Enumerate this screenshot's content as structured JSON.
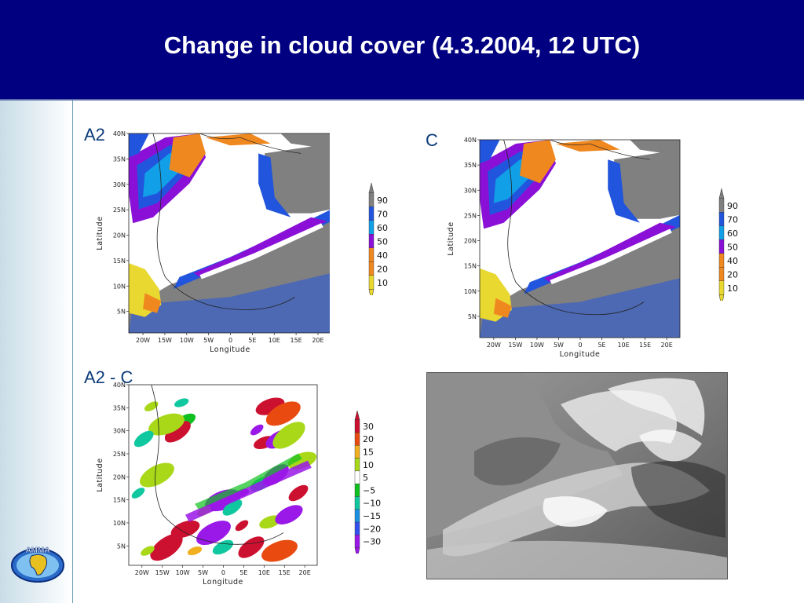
{
  "slide": {
    "title": "Change in cloud cover (4.3.2004, 12 UTC)"
  },
  "panels": [
    {
      "id": "a2",
      "label": "A2",
      "colorbar": [
        "90",
        "70",
        "60",
        "50",
        "40",
        "20",
        "10"
      ]
    },
    {
      "id": "c",
      "label": "C",
      "colorbar": [
        "90",
        "70",
        "60",
        "50",
        "40",
        "20",
        "10"
      ]
    },
    {
      "id": "diff",
      "label": "A2 - C",
      "colorbar": [
        "30",
        "20",
        "15",
        "10",
        "5",
        "−5",
        "−10",
        "−15",
        "−20",
        "−30"
      ]
    }
  ],
  "axes": {
    "xlabel": "Longitude",
    "ylabel": "Latitude",
    "xticks": [
      "20W",
      "15W",
      "10W",
      "5W",
      "0",
      "5E",
      "10E",
      "15E",
      "20E"
    ],
    "yticks": [
      "40N",
      "35N",
      "30N",
      "25N",
      "20N",
      "15N",
      "10N",
      "5N"
    ]
  },
  "colors": {
    "title_bg": "#000080",
    "cover_colors": [
      "#808080",
      "#2255dd",
      "#11a0e8",
      "#8a10d8",
      "#f08820",
      "#e8d830",
      "#ffffff"
    ],
    "diff_colors": [
      "#cc1030",
      "#e84a10",
      "#f0b020",
      "#a8d818",
      "#ffffff",
      "#10c020",
      "#10c8a0",
      "#1a90e0",
      "#3050f0",
      "#9a18e8"
    ]
  },
  "logo": {
    "text": "AMMA"
  }
}
